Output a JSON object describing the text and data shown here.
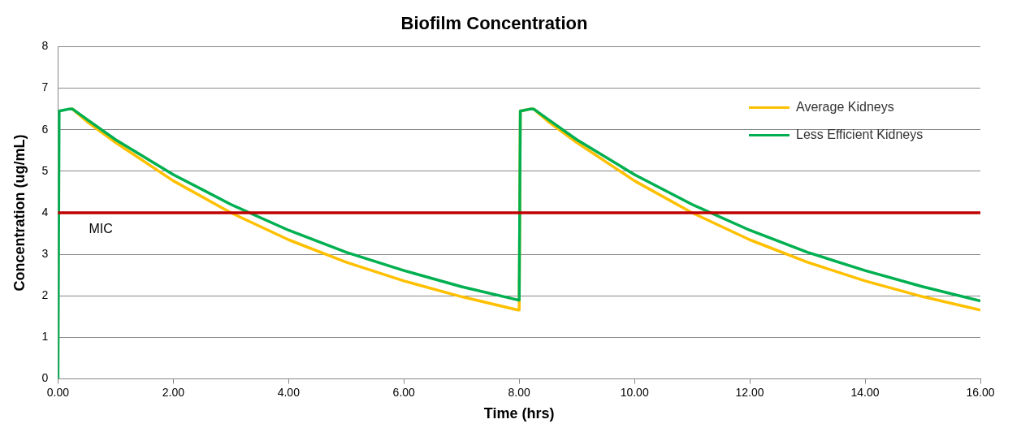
{
  "chart_data": {
    "type": "line",
    "title": "Biofilm Concentration",
    "xlabel": "Time (hrs)",
    "ylabel": "Concentration (ug/mL)",
    "xlim": [
      0,
      16
    ],
    "xticks": [
      {
        "value": 0,
        "label": "0.00"
      },
      {
        "value": 2,
        "label": "2.00"
      },
      {
        "value": 4,
        "label": "4.00"
      },
      {
        "value": 6,
        "label": "6.00"
      },
      {
        "value": 8,
        "label": "8.00"
      },
      {
        "value": 10,
        "label": "10.00"
      },
      {
        "value": 12,
        "label": "12.00"
      },
      {
        "value": 14,
        "label": "14.00"
      },
      {
        "value": 16,
        "label": "16.00"
      }
    ],
    "ylim": [
      0,
      8
    ],
    "yticks": [
      0,
      1,
      2,
      3,
      4,
      5,
      6,
      7,
      8
    ],
    "grid": "y",
    "legend": "top right",
    "marker": "none",
    "line_style": "solid",
    "ref_lines": [
      {
        "axis": "y",
        "value": 4,
        "label": "MIC",
        "color": "#c00000"
      }
    ],
    "series": [
      {
        "name": "Average Kidneys",
        "color": "#ffc000",
        "x": [
          0.2,
          0.25,
          0.5,
          1,
          2,
          3,
          4,
          5,
          6,
          7,
          7.98,
          8,
          8.02,
          8.2,
          8.25,
          8.5,
          9,
          10,
          11,
          12,
          13,
          14,
          15,
          16
        ],
        "values": [
          6.5,
          6.5,
          6.2,
          5.69,
          4.77,
          4.0,
          3.35,
          2.81,
          2.36,
          1.98,
          1.66,
          1.66,
          6.45,
          6.5,
          6.5,
          6.2,
          5.69,
          4.77,
          4.0,
          3.35,
          2.81,
          2.36,
          1.98,
          1.66
        ]
      },
      {
        "name": "Less Efficient Kidneys",
        "color": "#00b050",
        "x": [
          0,
          0.02,
          0.2,
          0.25,
          0.5,
          1,
          2,
          3,
          4,
          5,
          6,
          7,
          7.98,
          8,
          8.02,
          8.2,
          8.25,
          8.5,
          9,
          10,
          11,
          12,
          13,
          14,
          15,
          16
        ],
        "values": [
          0,
          6.45,
          6.5,
          6.5,
          6.25,
          5.76,
          4.92,
          4.2,
          3.58,
          3.05,
          2.61,
          2.22,
          1.9,
          1.9,
          6.45,
          6.5,
          6.5,
          6.25,
          5.76,
          4.92,
          4.2,
          3.58,
          3.05,
          2.61,
          2.22,
          1.88
        ]
      }
    ]
  }
}
